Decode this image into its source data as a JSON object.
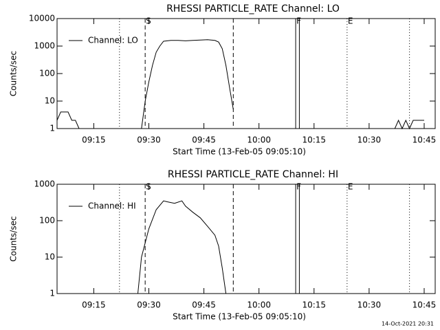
{
  "footer": "14-Oct-2021 20:31",
  "chart_data": [
    {
      "type": "line",
      "title": "RHESSI PARTICLE_RATE Channel: LO",
      "xlabel": "Start Time (13-Feb-05 09:05:10)",
      "ylabel": "Counts/sec",
      "log_y": true,
      "legend": "upper left",
      "xlim": [
        "09:05",
        "10:48"
      ],
      "xticks": [
        "09:15",
        "09:30",
        "09:45",
        "10:00",
        "10:15",
        "10:30",
        "10:45"
      ],
      "ylim": [
        1,
        10000
      ],
      "yticks": [
        1,
        10,
        100,
        1000,
        10000
      ],
      "x": [
        "09:05",
        "09:06",
        "09:08",
        "09:09",
        "09:10",
        "09:11",
        "09:12",
        "09:28",
        "09:29",
        "09:30",
        "09:31",
        "09:32",
        "09:33",
        "09:34",
        "09:36",
        "09:38",
        "09:40",
        "09:42",
        "09:44",
        "09:46",
        "09:48",
        "09:49",
        "09:50",
        "09:51",
        "09:52",
        "09:53",
        "09:54",
        "10:37",
        "10:38",
        "10:39",
        "10:40",
        "10:41",
        "10:42",
        "10:43",
        "10:45"
      ],
      "series": [
        {
          "name": "Channel: LO",
          "color": "#000000",
          "values": [
            2,
            4,
            4,
            2,
            2,
            1,
            null,
            1,
            10,
            50,
            200,
            600,
            1000,
            1500,
            1600,
            1600,
            1550,
            1600,
            1650,
            1700,
            1600,
            1400,
            800,
            200,
            30,
            5,
            null,
            1,
            2,
            1,
            2,
            1,
            2,
            2,
            2
          ]
        }
      ],
      "events": [
        {
          "x": "09:22",
          "style": "dotted"
        },
        {
          "x": "09:29",
          "style": "dashed",
          "label": "S"
        },
        {
          "x": "09:53",
          "style": "dashed"
        },
        {
          "x": "10:10",
          "style": "solid",
          "label": "F"
        },
        {
          "x": "10:11",
          "style": "solid"
        },
        {
          "x": "10:24",
          "style": "dotted",
          "label": "E"
        },
        {
          "x": "10:41",
          "style": "dotted"
        }
      ]
    },
    {
      "type": "line",
      "title": "RHESSI PARTICLE_RATE Channel: HI",
      "xlabel": "Start Time (13-Feb-05 09:05:10)",
      "ylabel": "Counts/sec",
      "log_y": true,
      "legend": "upper left",
      "xlim": [
        "09:05",
        "10:48"
      ],
      "xticks": [
        "09:15",
        "09:30",
        "09:45",
        "10:00",
        "10:15",
        "10:30",
        "10:45"
      ],
      "ylim": [
        1,
        1000
      ],
      "yticks": [
        1,
        10,
        100,
        1000
      ],
      "x": [
        "09:27",
        "09:28",
        "09:30",
        "09:32",
        "09:34",
        "09:35",
        "09:37",
        "09:39",
        "09:40",
        "09:42",
        "09:44",
        "09:46",
        "09:48",
        "09:49",
        "09:50",
        "09:51"
      ],
      "series": [
        {
          "name": "Channel: HI",
          "color": "#000000",
          "values": [
            1,
            10,
            60,
            200,
            350,
            330,
            300,
            350,
            250,
            170,
            120,
            70,
            40,
            20,
            5,
            1
          ]
        }
      ],
      "events": [
        {
          "x": "09:22",
          "style": "dotted"
        },
        {
          "x": "09:29",
          "style": "dashed",
          "label": "S"
        },
        {
          "x": "09:53",
          "style": "dashed"
        },
        {
          "x": "10:10",
          "style": "solid",
          "label": "F"
        },
        {
          "x": "10:11",
          "style": "solid"
        },
        {
          "x": "10:24",
          "style": "dotted",
          "label": "E"
        },
        {
          "x": "10:41",
          "style": "dotted"
        }
      ]
    }
  ]
}
